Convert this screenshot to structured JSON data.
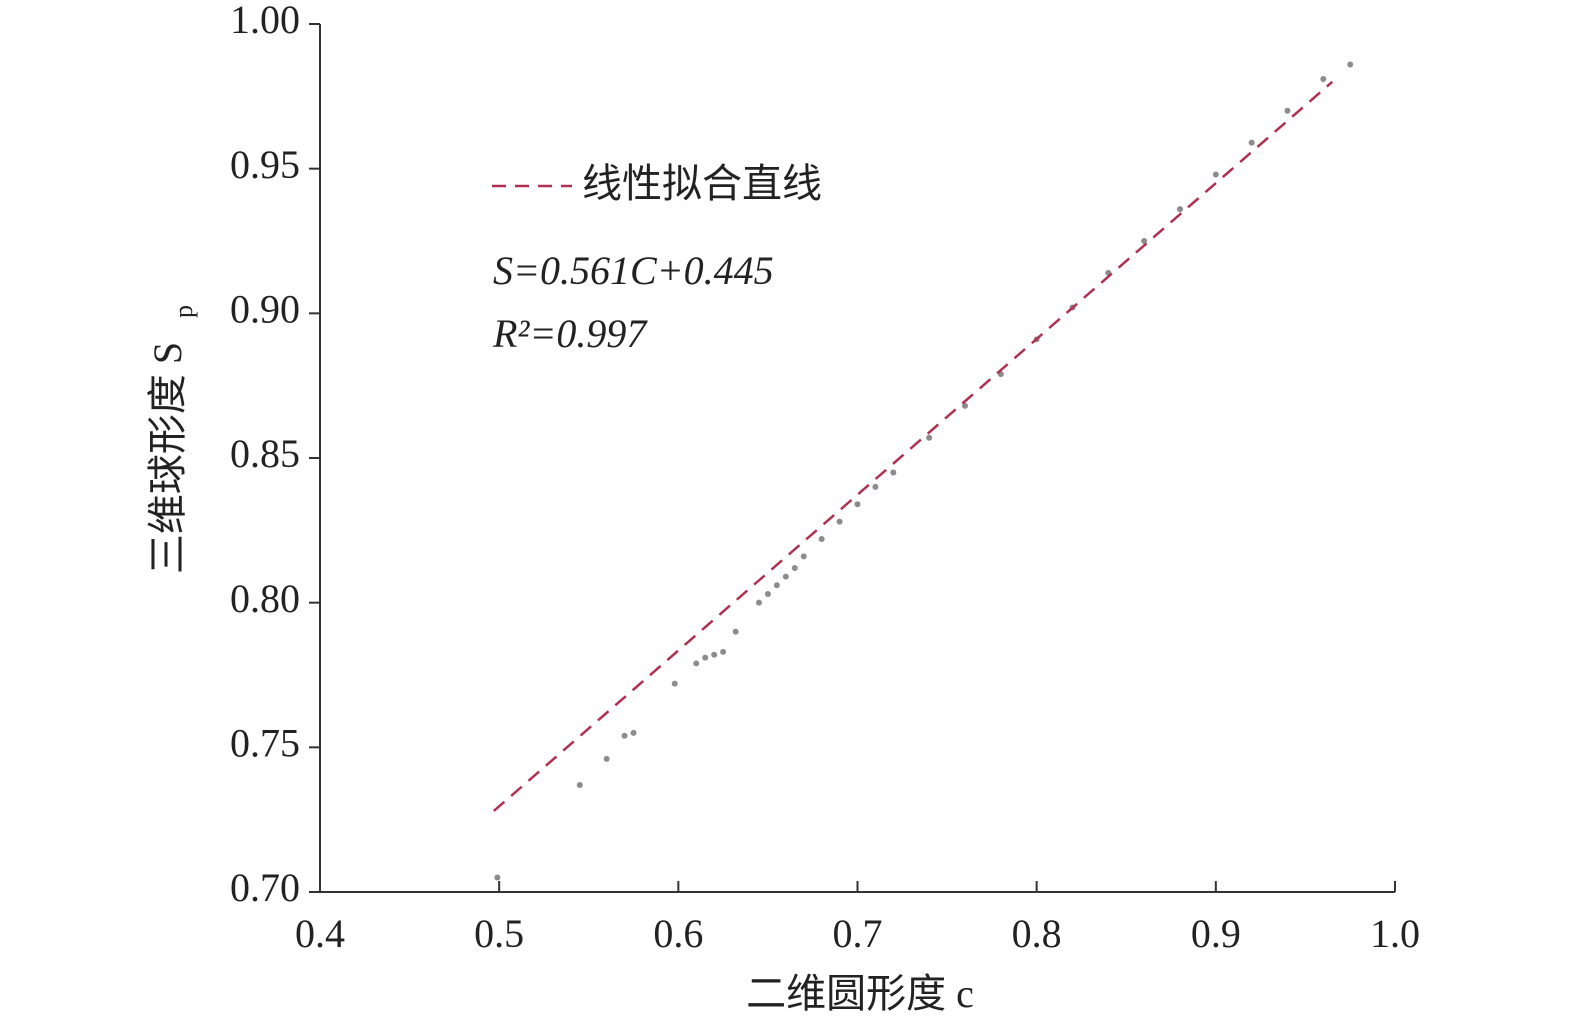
{
  "chart_data": {
    "type": "scatter",
    "x_label": "二维圆形度 c",
    "y_label": "三维球形度 S",
    "y_label_subscript": "p",
    "xlim": [
      0.4,
      1.0
    ],
    "xticks": [
      0.4,
      0.5,
      0.6,
      0.7,
      0.8,
      0.9,
      {
        "value": 1.0,
        "label": "1.0"
      }
    ],
    "ylim": [
      0.7,
      1.0
    ],
    "yticks": [
      {
        "value": 0.7,
        "label": "0.70"
      },
      0.75,
      {
        "value": 0.8,
        "label": "0.80"
      },
      0.85,
      {
        "value": 0.9,
        "label": "0.90"
      },
      0.95,
      {
        "value": 1.0,
        "label": "1.00"
      }
    ],
    "annotations": [
      "S=0.561C+0.445",
      "R²=0.997"
    ],
    "legend": "upper left",
    "series": [
      {
        "type": "scatter",
        "color": "#8c8c8c",
        "x": [
          0.499,
          0.545,
          0.56,
          0.57,
          0.575,
          0.598,
          0.61,
          0.615,
          0.62,
          0.625,
          0.632,
          0.645,
          0.65,
          0.655,
          0.66,
          0.665,
          0.67,
          0.68,
          0.69,
          0.7,
          0.71,
          0.72,
          0.74,
          0.76,
          0.78,
          0.8,
          0.82,
          0.84,
          0.86,
          0.88,
          0.9,
          0.92,
          0.94,
          0.96,
          0.975
        ],
        "values": [
          0.705,
          0.737,
          0.746,
          0.754,
          0.755,
          0.772,
          0.779,
          0.781,
          0.782,
          0.783,
          0.79,
          0.8,
          0.803,
          0.806,
          0.809,
          0.812,
          0.816,
          0.822,
          0.828,
          0.834,
          0.84,
          0.845,
          0.857,
          0.868,
          0.879,
          0.891,
          0.902,
          0.914,
          0.925,
          0.936,
          0.948,
          0.959,
          0.97,
          0.981,
          0.986
        ]
      },
      {
        "type": "line",
        "name": "线性拟合直线",
        "color": "#b03050",
        "x": [
          0.497,
          0.965
        ],
        "values": [
          0.728,
          0.98
        ]
      }
    ]
  }
}
